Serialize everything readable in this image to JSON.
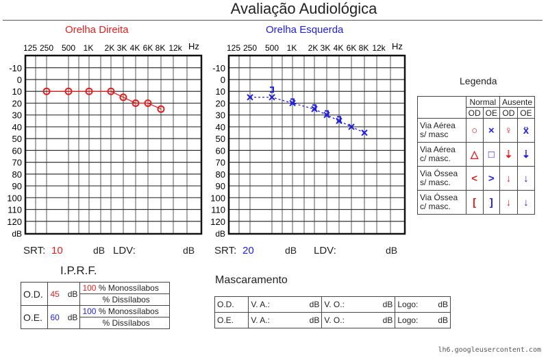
{
  "title": "Avaliação Audiológica",
  "right_ear": {
    "title": "Orelha Direita",
    "color": "#e02020",
    "srt_label": "SRT:",
    "srt": "10",
    "db": "dB",
    "ldv_label": "LDV:",
    "ldv_db": "dB"
  },
  "left_ear": {
    "title": "Orelha Esquerda",
    "color": "#2020e0",
    "srt_label": "SRT:",
    "srt": "20",
    "db": "dB",
    "ldv_label": "LDV:",
    "ldv_db": "dB"
  },
  "chart_data": [
    {
      "type": "line",
      "title": "Orelha Direita",
      "x_ticks": [
        "125",
        "250",
        "500",
        "1K",
        "2K",
        "3K",
        "4K",
        "6K",
        "8K",
        "12k"
      ],
      "x_unit": "Hz",
      "y_ticks": [
        "-10",
        "0",
        "10",
        "20",
        "30",
        "40",
        "50",
        "60",
        "70",
        "80",
        "90",
        "100",
        "110",
        "120"
      ],
      "y_unit": "dB",
      "ylim": [
        -10,
        120
      ],
      "y_inverted": true,
      "grid": true,
      "series": [
        {
          "marker": "circle",
          "x": [
            "250",
            "500",
            "1K",
            "2K",
            "3K",
            "4K",
            "6K",
            "8K"
          ],
          "y": [
            10,
            10,
            10,
            10,
            15,
            20,
            20,
            25
          ]
        }
      ]
    },
    {
      "type": "line",
      "title": "Orelha Esquerda",
      "x_ticks": [
        "125",
        "250",
        "500",
        "1K",
        "2K",
        "3K",
        "4K",
        "6K",
        "8K",
        "12k"
      ],
      "x_unit": "Hz",
      "y_ticks": [
        "-10",
        "0",
        "10",
        "20",
        "30",
        "40",
        "50",
        "60",
        "70",
        "80",
        "90",
        "100",
        "110",
        "120"
      ],
      "y_unit": "dB",
      "ylim": [
        -10,
        120
      ],
      "y_inverted": true,
      "grid": true,
      "series": [
        {
          "marker": "x",
          "x": [
            "250",
            "500",
            "1K",
            "2K",
            "3K",
            "4K",
            "6K",
            "8K"
          ],
          "y": [
            15,
            15,
            20,
            25,
            30,
            35,
            40,
            45
          ]
        },
        {
          "marker": "bracket",
          "x": [
            "500",
            "1K",
            "2K",
            "3K",
            "4K"
          ],
          "y": [
            10,
            20,
            25,
            30,
            35
          ]
        }
      ]
    }
  ],
  "legend": {
    "title": "Legenda",
    "normal": "Normal",
    "ausente": "Ausente",
    "od": "OD",
    "oe": "OE",
    "rows": [
      {
        "label1": "Via Aérea",
        "label2": "s/ masc",
        "symbols": [
          "○",
          "×",
          "♀",
          "ẍ"
        ]
      },
      {
        "label1": "Via Aérea",
        "label2": "c/ masc.",
        "symbols": [
          "△",
          "□",
          "⇣",
          "⇣"
        ]
      },
      {
        "label1": "Via Óssea",
        "label2": "s/ masc.",
        "symbols": [
          "<",
          ">",
          "↓",
          "↓"
        ]
      },
      {
        "label1": "Via Óssea",
        "label2": "c/ masc.",
        "symbols": [
          "[",
          "]",
          "↓",
          "↓"
        ]
      }
    ]
  },
  "iprf": {
    "title": "I.P.R.F.",
    "od": "O.D.",
    "oe": "O.E.",
    "od_db": "45",
    "oe_db": "60",
    "db": "dB",
    "od_mono": "100",
    "oe_mono": "100",
    "mono": "% Monossílabos",
    "dis": "% Dissílabos"
  },
  "masc": {
    "title": "Mascaramento",
    "od": "O.D.",
    "oe": "O.E.",
    "va": "V. A.:",
    "vo": "V. O.:",
    "logo": "Logo:",
    "db": "dB"
  },
  "footer": "lh6.googleusercontent.com"
}
